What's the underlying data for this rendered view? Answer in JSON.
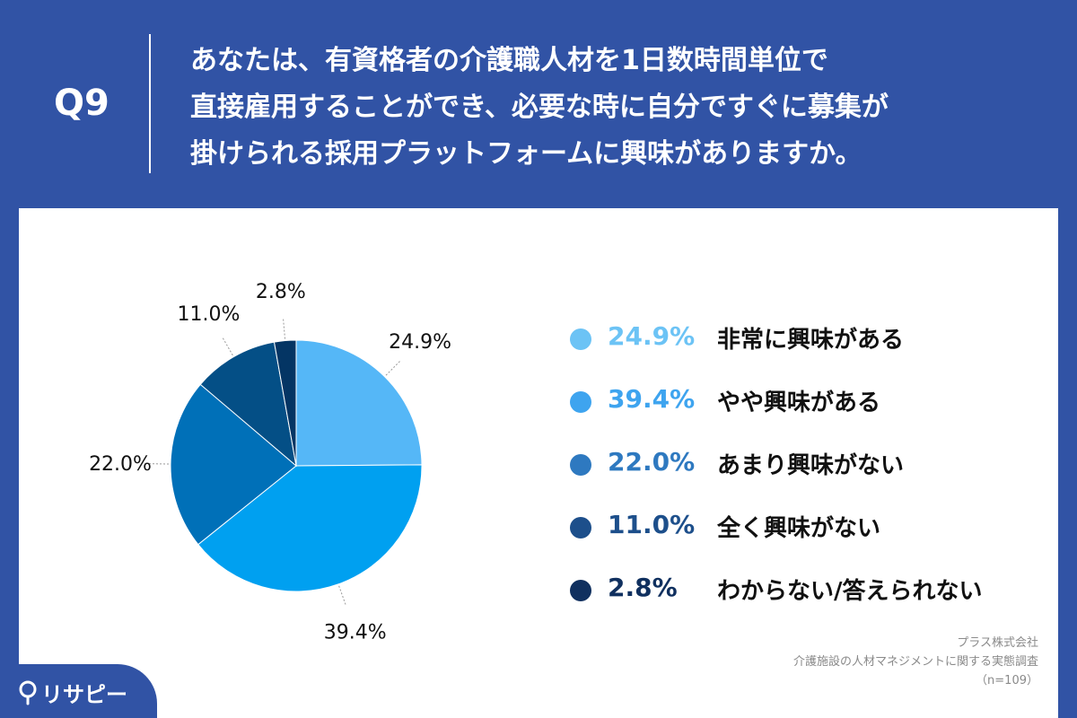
{
  "header": {
    "qnum": "Q9",
    "question_lines": [
      "あなたは、有資格者の介護職人材を1日数時間単位で",
      "直接雇用することができ、必要な時に自分ですぐに募集が",
      "掛けられる採用プラットフォームに興味がありますか。"
    ]
  },
  "chart_data": {
    "type": "pie",
    "title": "",
    "slices": [
      {
        "label": "非常に興味がある",
        "value": 24.9,
        "display": "24.9%",
        "color": "#55b7f7"
      },
      {
        "label": "やや興味がある",
        "value": 39.4,
        "display": "39.4%",
        "color": "#00a0f0"
      },
      {
        "label": "あまり興味がない",
        "value": 22.0,
        "display": "22.0%",
        "color": "#0070b8"
      },
      {
        "label": "全く興味がない",
        "value": 11.0,
        "display": "11.0%",
        "color": "#044f86"
      },
      {
        "label": "わからない/答えられない",
        "value": 2.8,
        "display": "2.8%",
        "color": "#043564"
      }
    ],
    "legend_position": "right"
  },
  "legend": {
    "items": [
      {
        "pct": "24.9%",
        "label": "非常に興味がある",
        "dot_color": "#6cc3f5",
        "text_color": "#6cc3f5"
      },
      {
        "pct": "39.4%",
        "label": "やや興味がある",
        "dot_color": "#3ea4ef",
        "text_color": "#3ea4ef"
      },
      {
        "pct": "22.0%",
        "label": "あまり興味がない",
        "dot_color": "#2e79c0",
        "text_color": "#2e79c0"
      },
      {
        "pct": "11.0%",
        "label": "全く興味がない",
        "dot_color": "#1d4f8b",
        "text_color": "#1d4f8b"
      },
      {
        "pct": "2.8%",
        "label": "わからない/答えられない",
        "dot_color": "#10305f",
        "text_color": "#10305f"
      }
    ]
  },
  "source": {
    "company": "プラス株式会社",
    "survey": "介護施設の人材マネジメントに関する実態調査",
    "n": "（n=109）"
  },
  "logo": {
    "text": "リサピー"
  },
  "colors": {
    "background": "#3153a5",
    "panel": "#ffffff"
  }
}
